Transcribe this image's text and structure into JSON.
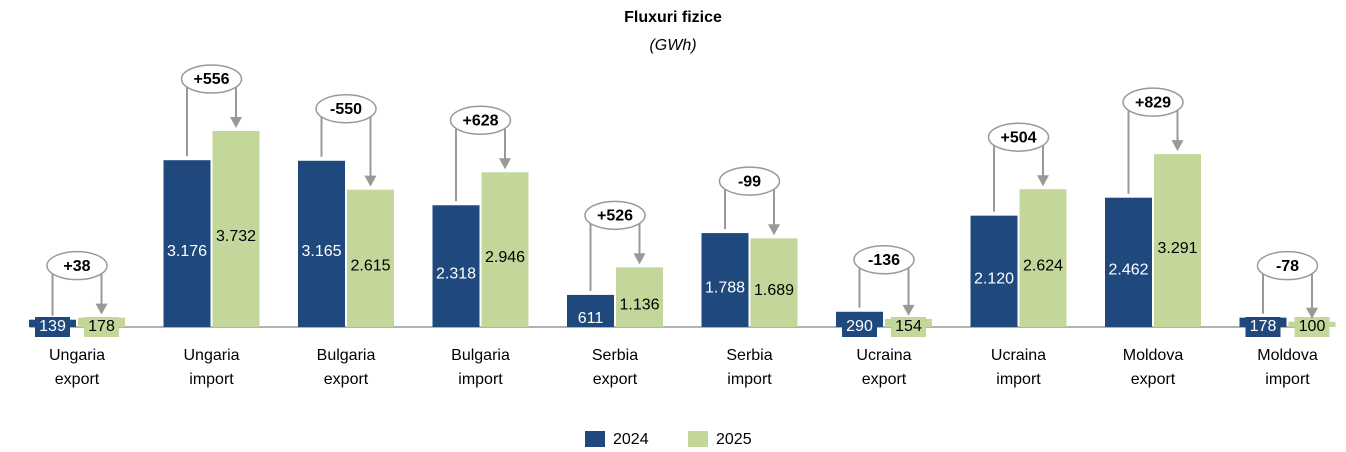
{
  "chart_data": {
    "type": "bar",
    "title": "Fluxuri fizice",
    "subtitle": "(GWh)",
    "categories": [
      "Ungaria export",
      "Ungaria import",
      "Bulgaria export",
      "Bulgaria import",
      "Serbia export",
      "Serbia import",
      "Ucraina export",
      "Ucraina import",
      "Moldova export",
      "Moldova import"
    ],
    "series": [
      {
        "name": "2024",
        "color": "#1f497d",
        "values": [
          139,
          3176,
          3165,
          2318,
          611,
          1788,
          290,
          2120,
          2462,
          178
        ],
        "value_labels": [
          "139",
          "3.176",
          "3.165",
          "2.318",
          "611",
          "1.788",
          "290",
          "2.120",
          "2.462",
          "178"
        ]
      },
      {
        "name": "2025",
        "color": "#c4d79b",
        "values": [
          178,
          3732,
          2615,
          2946,
          1136,
          1689,
          154,
          2624,
          3291,
          100
        ],
        "value_labels": [
          "178",
          "3.732",
          "2.615",
          "2.946",
          "1.136",
          "1.689",
          "154",
          "2.624",
          "3.291",
          "100"
        ]
      }
    ],
    "differences": [
      38,
      556,
      -550,
      628,
      526,
      -99,
      -136,
      504,
      829,
      -78
    ],
    "difference_labels": [
      "+38",
      "+556",
      "-550",
      "+628",
      "+526",
      "-99",
      "-136",
      "+504",
      "+829",
      "-78"
    ],
    "legend": "bottom"
  }
}
